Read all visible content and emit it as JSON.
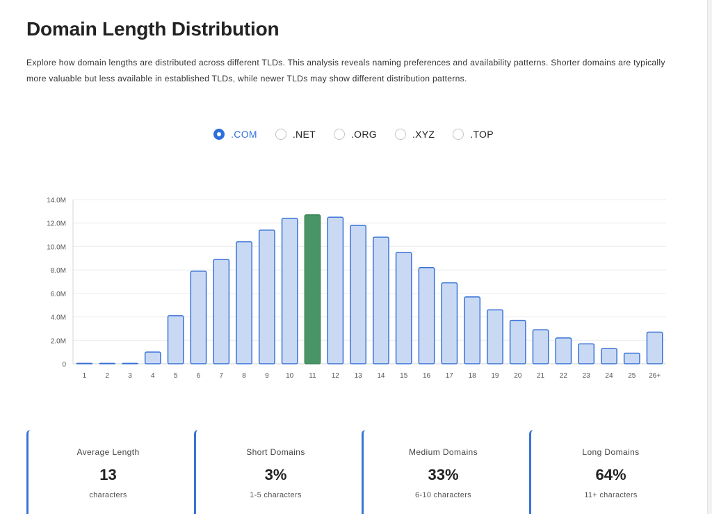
{
  "header": {
    "title": "Domain Length Distribution",
    "description": "Explore how domain lengths are distributed across different TLDs. This analysis reveals naming preferences and availability patterns. Shorter domains are typically more valuable but less available in established TLDs, while newer TLDs may show different distribution patterns."
  },
  "tld_selector": {
    "selected": ".COM",
    "options": [
      ".COM",
      ".NET",
      ".ORG",
      ".XYZ",
      ".TOP"
    ]
  },
  "colors": {
    "accent": "#2f6fdc",
    "bar_fill": "#c9d9f4",
    "bar_stroke": "#3a73d6",
    "highlight_fill": "#4a9566",
    "highlight_stroke": "#3c8558"
  },
  "chart_data": {
    "type": "bar",
    "categories": [
      "1",
      "2",
      "3",
      "4",
      "5",
      "6",
      "7",
      "8",
      "9",
      "10",
      "11",
      "12",
      "13",
      "14",
      "15",
      "16",
      "17",
      "18",
      "19",
      "20",
      "21",
      "22",
      "23",
      "24",
      "25",
      "26+"
    ],
    "values": [
      0,
      0,
      0,
      1000000,
      4100000,
      7900000,
      8900000,
      10400000,
      11400000,
      12400000,
      12700000,
      12500000,
      11800000,
      10800000,
      9500000,
      8200000,
      6900000,
      5700000,
      4600000,
      3700000,
      2900000,
      2200000,
      1700000,
      1300000,
      900000,
      2700000
    ],
    "highlight_category": "11",
    "ylim": [
      0,
      14000000
    ],
    "yticks": [
      0,
      2000000,
      4000000,
      6000000,
      8000000,
      10000000,
      12000000,
      14000000
    ],
    "ytick_labels": [
      "0",
      "2.0M",
      "4.0M",
      "6.0M",
      "8.0M",
      "10.0M",
      "12.0M",
      "14.0M"
    ],
    "grid": true,
    "title": "",
    "xlabel": "",
    "ylabel": ""
  },
  "stats": [
    {
      "label": "Average Length",
      "value": "13",
      "sub": "characters"
    },
    {
      "label": "Short Domains",
      "value": "3%",
      "sub": "1-5 characters"
    },
    {
      "label": "Medium Domains",
      "value": "33%",
      "sub": "6-10 characters"
    },
    {
      "label": "Long Domains",
      "value": "64%",
      "sub": "11+ characters"
    }
  ]
}
